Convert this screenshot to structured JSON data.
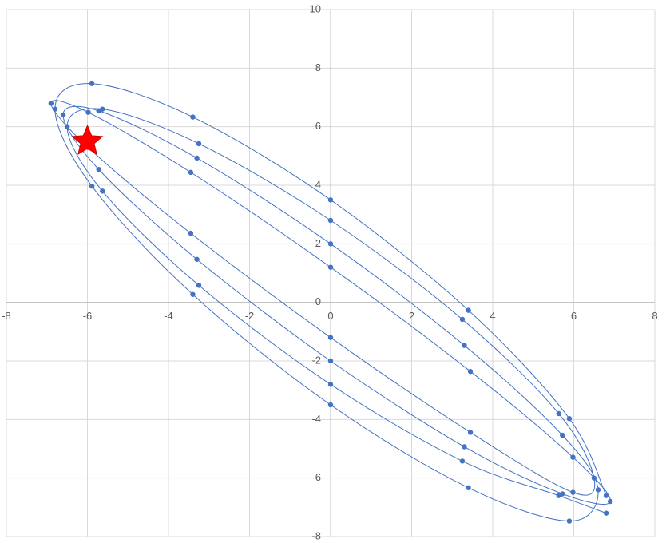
{
  "chart_data": {
    "type": "scatter",
    "xlim": [
      -8,
      8
    ],
    "xticks": [
      -8,
      -6,
      -4,
      -2,
      0,
      2,
      4,
      6,
      8
    ],
    "ylim": [
      -8,
      10
    ],
    "yticks": [
      -8,
      -6,
      -4,
      -2,
      0,
      2,
      4,
      6,
      8,
      10
    ],
    "grid": true,
    "series": [
      {
        "color": "#4472c4",
        "marker": "circle",
        "line": "smooth",
        "x": [
          6.8,
          5.89,
          3.4,
          0,
          -3.4,
          -5.89,
          -6.8,
          -5.89,
          -3.4,
          0,
          3.4,
          5.89,
          6.6,
          5.72,
          3.3,
          0,
          -3.3,
          -5.72,
          -6.6,
          -5.72,
          -3.3,
          0,
          3.3,
          5.72,
          6.9,
          5.98,
          3.45,
          0,
          -3.45,
          -5.98,
          -6.9,
          -5.98,
          -3.45,
          0,
          3.45,
          5.98,
          6.5,
          5.63,
          3.25,
          0,
          -3.25,
          -5.63,
          -6.5,
          -5.63,
          -3.25,
          0,
          3.25,
          5.63,
          6.8
        ],
        "values": [
          -6.6,
          -3.97,
          -0.27,
          3.5,
          6.33,
          7.47,
          6.6,
          3.97,
          0.27,
          -3.5,
          -6.33,
          -7.47,
          -6.4,
          -4.54,
          -1.47,
          2,
          4.93,
          6.54,
          6.4,
          4.54,
          1.47,
          -2,
          -4.93,
          -6.54,
          -6.8,
          -5.29,
          -2.36,
          1.2,
          4.44,
          6.49,
          6.8,
          5.29,
          2.36,
          -1.2,
          -4.44,
          -6.49,
          -6,
          -3.8,
          -0.58,
          2.8,
          5.42,
          6.6,
          6,
          3.8,
          0.58,
          -2.8,
          -5.42,
          -6.6,
          -7.2
        ]
      },
      {
        "color": "#ff0000",
        "marker": "star",
        "line": "none",
        "x": [
          -6
        ],
        "values": [
          5.5
        ]
      }
    ]
  }
}
